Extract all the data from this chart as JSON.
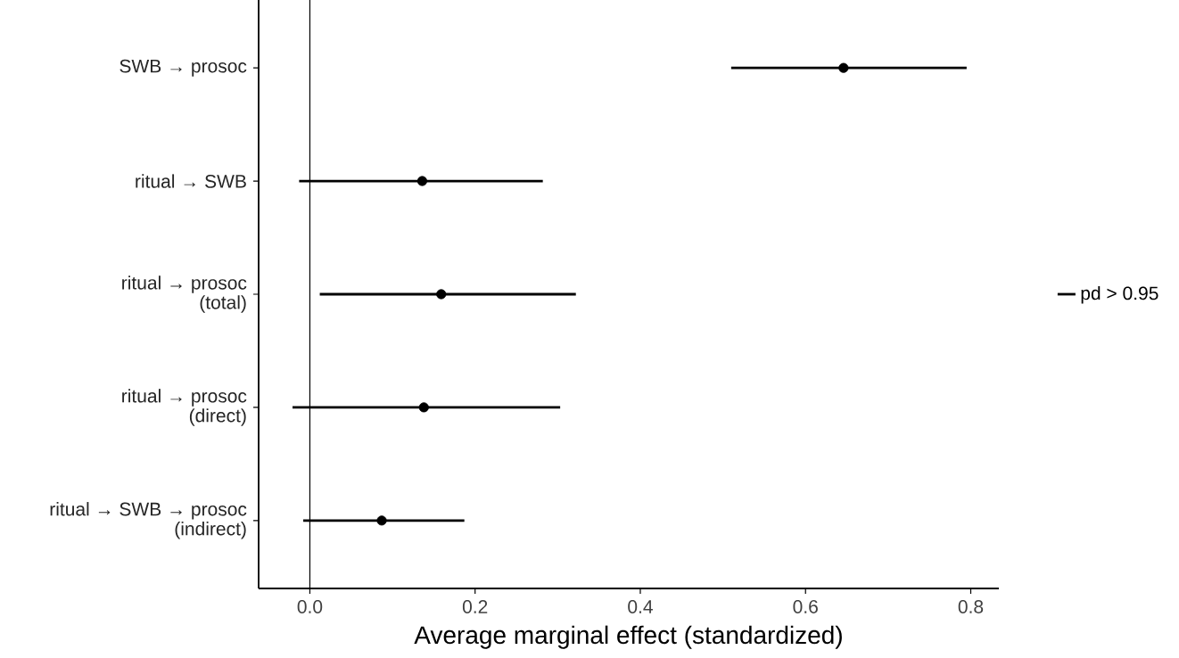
{
  "chart_data": {
    "type": "scatter",
    "orientation": "horizontal",
    "xlabel": "Average marginal effect (standardized)",
    "categories": [
      "SWB → prosoc",
      "ritual → SWB",
      "ritual → prosoc\n(total)",
      "ritual → prosoc\n(direct)",
      "ritual → SWB → prosoc\n(indirect)"
    ],
    "series": [
      {
        "name": "pd > 0.95",
        "color": "#000000",
        "values": [
          0.646,
          0.136,
          0.159,
          0.138,
          0.087
        ],
        "errors": [
          [
            0.51,
            0.795
          ],
          [
            -0.013,
            0.282
          ],
          [
            0.012,
            0.322
          ],
          [
            -0.021,
            0.303
          ],
          [
            -0.008,
            0.187
          ]
        ]
      }
    ],
    "xlim": [
      -0.062,
      0.834
    ],
    "xticks": [
      {
        "value": 0,
        "label": "0.0"
      },
      {
        "value": 0.2,
        "label": "0.2"
      },
      {
        "value": 0.4,
        "label": "0.4"
      },
      {
        "value": 0.6,
        "label": "0.6"
      },
      {
        "value": 0.8,
        "label": "0.8"
      }
    ],
    "ref_lines": [
      {
        "axis": "x",
        "value": 0,
        "color": "#000000"
      }
    ],
    "marker": "circle",
    "legend": "right",
    "grid": false
  }
}
